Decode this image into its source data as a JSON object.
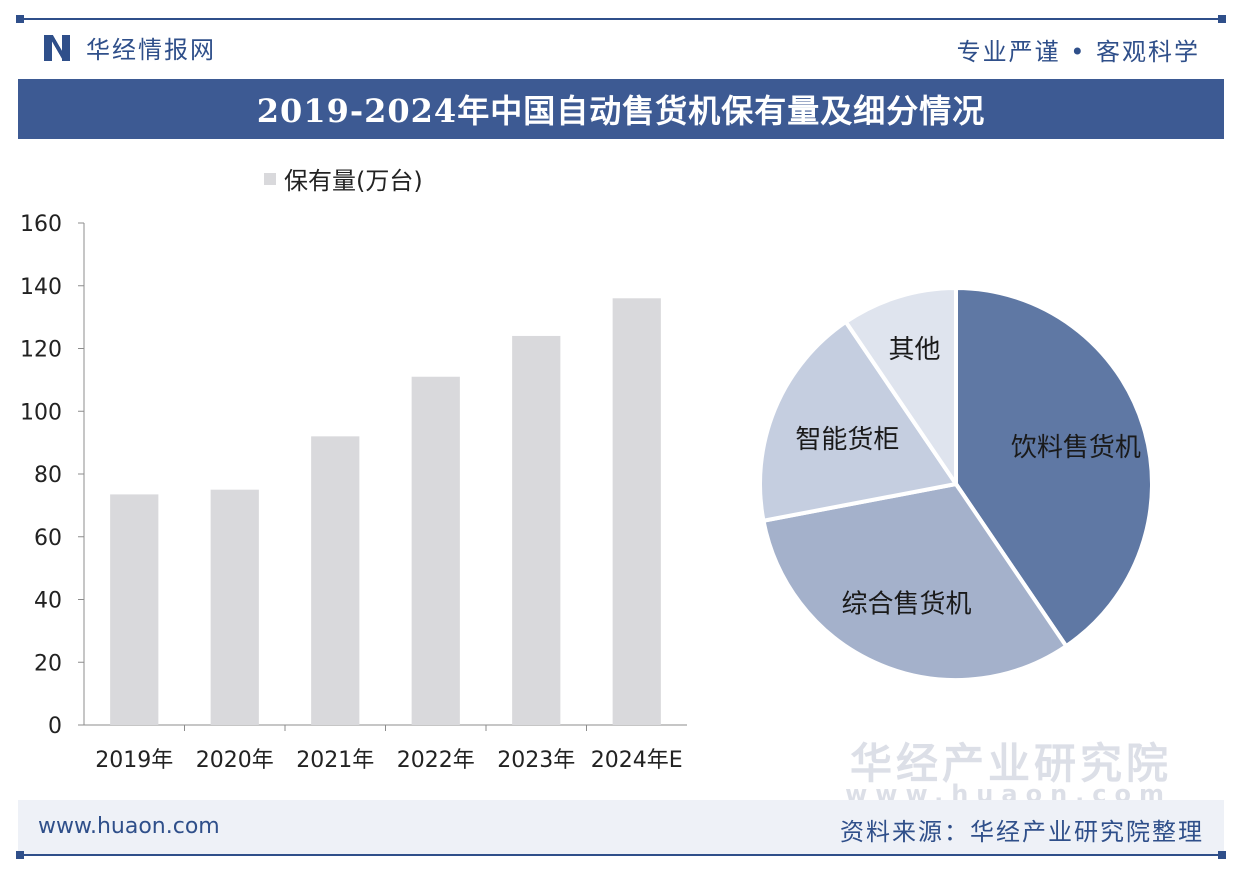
{
  "header": {
    "brand": "华经情报网",
    "slogan": "专业严谨 • 客观科学",
    "title": "2019-2024年中国自动售货机保有量及细分情况"
  },
  "watermark": {
    "name": "华经产业研究院",
    "url": "www.huaon.com"
  },
  "footer": {
    "site": "www.huaon.com",
    "source": "资料来源：华经产业研究院整理"
  },
  "colors": {
    "accent": "#3d5a93",
    "bar": "#d9d9dc",
    "pie": [
      "#5f78a4",
      "#a4b1cb",
      "#c5cee0",
      "#dfe4ee"
    ]
  },
  "chart_data": [
    {
      "type": "bar",
      "categories": [
        "2019年",
        "2020年",
        "2021年",
        "2022年",
        "2023年",
        "2024年E"
      ],
      "series": [
        {
          "name": "保有量(万台)",
          "values": [
            73.5,
            75,
            92,
            111,
            124,
            136
          ]
        }
      ],
      "ylim": [
        0,
        160
      ],
      "yticks": [
        0,
        20,
        40,
        60,
        80,
        100,
        120,
        140,
        160
      ],
      "legend": "top",
      "grid": false
    },
    {
      "type": "pie",
      "labels": [
        "饮料售货机",
        "综合售货机",
        "智能货柜",
        "其他"
      ],
      "values": [
        40.5,
        31.5,
        18.5,
        9.5
      ]
    }
  ]
}
